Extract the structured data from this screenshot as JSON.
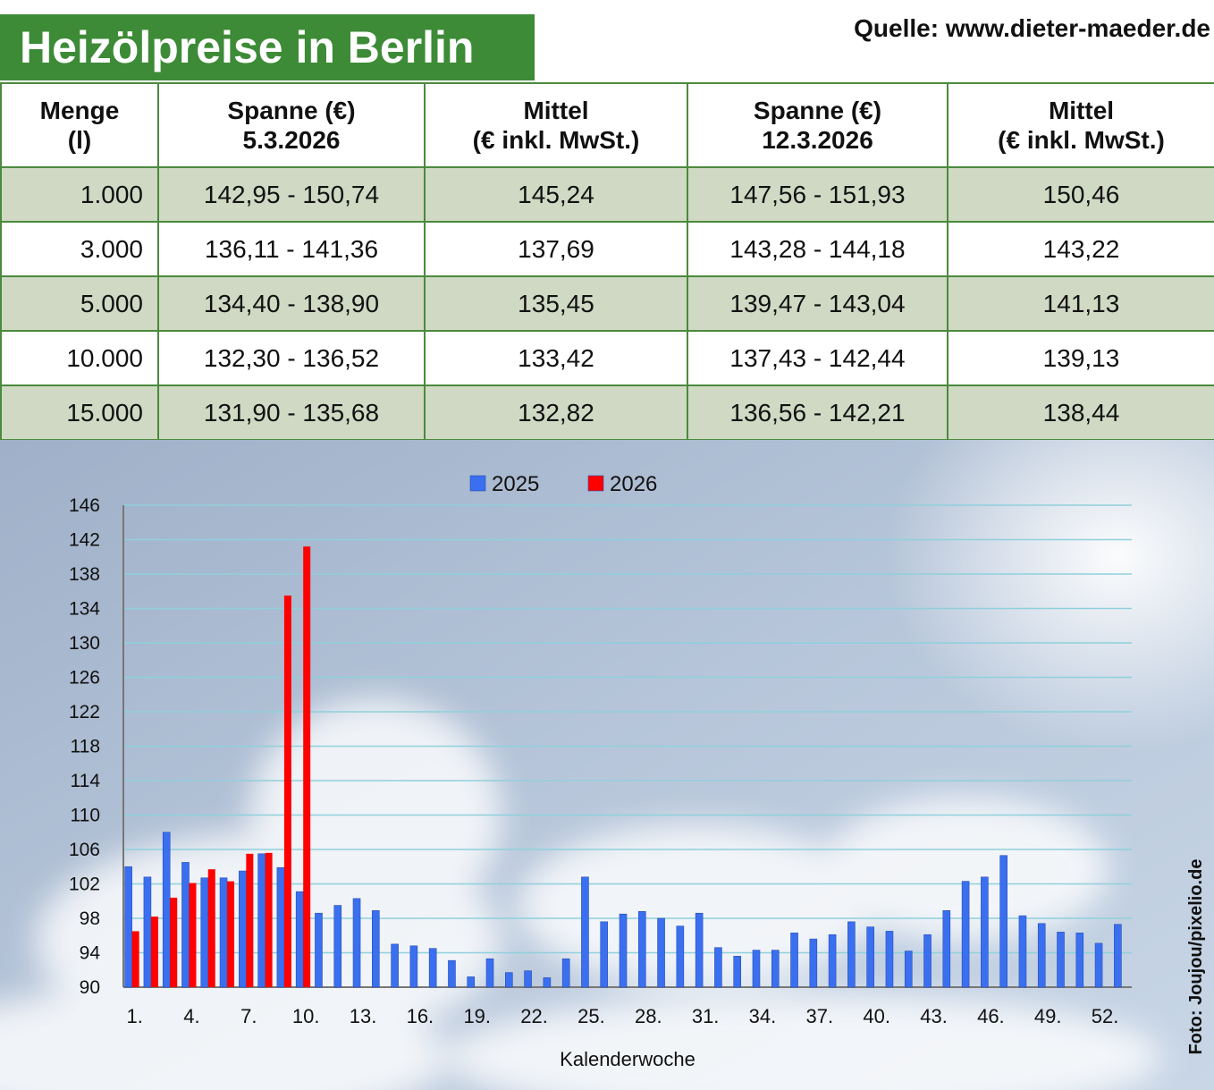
{
  "header": {
    "title": "Heizölpreise in Berlin",
    "source": "Quelle: www.dieter-maeder.de"
  },
  "table": {
    "columns": [
      "Menge\n(l)",
      "Spanne (€)\n5.3.2026",
      "Mittel\n(€ inkl. MwSt.)",
      "Spanne (€)\n12.3.2026",
      "Mittel\n(€ inkl. MwSt.)"
    ],
    "rows": [
      [
        "1.000",
        "142,95 - 150,74",
        "145,24",
        "147,56 - 151,93",
        "150,46"
      ],
      [
        "3.000",
        "136,11 - 141,36",
        "137,69",
        "143,28 - 144,18",
        "143,22"
      ],
      [
        "5.000",
        "134,40 - 138,90",
        "135,45",
        "139,47 - 143,04",
        "141,13"
      ],
      [
        "10.000",
        "132,30 - 136,52",
        "133,42",
        "137,43 - 142,44",
        "139,13"
      ],
      [
        "15.000",
        "131,90 - 135,68",
        "132,82",
        "136,56 - 142,21",
        "138,44"
      ]
    ]
  },
  "chart_data": {
    "type": "bar",
    "x_label": "Kalenderwoche",
    "categories": [
      "1.",
      null,
      null,
      "4.",
      null,
      null,
      "7.",
      null,
      null,
      "10.",
      null,
      null,
      "13.",
      null,
      null,
      "16.",
      null,
      null,
      "19.",
      null,
      null,
      "22.",
      null,
      null,
      "25.",
      null,
      null,
      "28.",
      null,
      null,
      "31.",
      null,
      null,
      "34.",
      null,
      null,
      "37.",
      null,
      null,
      "40.",
      null,
      null,
      "43.",
      null,
      null,
      "46.",
      null,
      null,
      "49.",
      null,
      null,
      "52.",
      null
    ],
    "series": [
      {
        "name": "2025",
        "color": "#3a6ff0",
        "values": [
          104.0,
          102.8,
          108.0,
          104.5,
          102.7,
          102.7,
          103.5,
          105.5,
          103.9,
          101.1,
          98.6,
          99.5,
          100.3,
          98.9,
          95.0,
          94.8,
          94.5,
          93.1,
          91.2,
          93.3,
          91.7,
          91.9,
          91.1,
          93.3,
          102.8,
          97.6,
          98.5,
          98.8,
          98.0,
          97.1,
          98.6,
          94.6,
          93.6,
          94.3,
          94.3,
          96.3,
          95.6,
          96.1,
          97.6,
          97.0,
          96.5,
          94.2,
          96.1,
          98.9,
          102.3,
          102.8,
          105.3,
          98.3,
          97.4,
          96.4,
          96.3,
          95.1,
          97.3
        ]
      },
      {
        "name": "2026",
        "color": "#ff0000",
        "values": [
          96.5,
          98.2,
          100.4,
          102.1,
          103.7,
          102.3,
          105.5,
          105.6,
          135.5,
          141.2,
          null,
          null,
          null,
          null,
          null,
          null,
          null,
          null,
          null,
          null,
          null,
          null,
          null,
          null,
          null,
          null,
          null,
          null,
          null,
          null,
          null,
          null,
          null,
          null,
          null,
          null,
          null,
          null,
          null,
          null,
          null,
          null,
          null,
          null,
          null,
          null,
          null,
          null,
          null,
          null,
          null,
          null,
          null
        ]
      }
    ],
    "ylim": [
      90,
      146
    ],
    "yticks": [
      90,
      94,
      98,
      102,
      106,
      110,
      114,
      118,
      122,
      126,
      130,
      134,
      138,
      142,
      146
    ],
    "grid": true,
    "legend": "top"
  },
  "photo_credit": "Foto: Joujou/pixelio.de"
}
